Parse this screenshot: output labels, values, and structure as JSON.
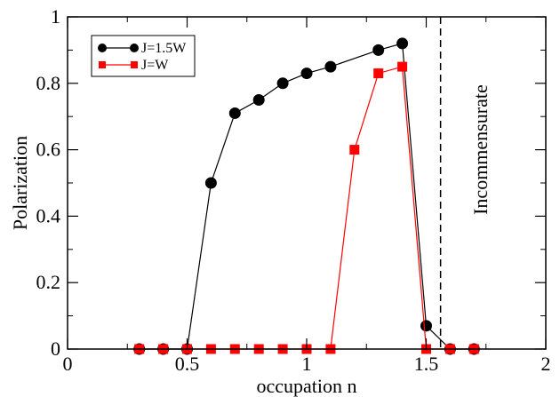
{
  "chart_data": {
    "type": "line",
    "xlabel": "occupation n",
    "ylabel": "Polarization",
    "xlim": [
      0,
      2
    ],
    "ylim": [
      0,
      1
    ],
    "x_ticks": [
      0,
      0.5,
      1,
      1.5,
      2
    ],
    "x_tick_labels": [
      "0",
      "0.5",
      "1",
      "1.5",
      "2"
    ],
    "y_ticks": [
      0,
      0.2,
      0.4,
      0.6,
      0.8,
      1
    ],
    "y_tick_labels": [
      "0",
      "0.2",
      "0.4",
      "0.6",
      "0.8",
      "1"
    ],
    "grid": false,
    "legend_position": "top-left",
    "series": [
      {
        "name": "J=1.5W",
        "color": "#000000",
        "marker": "circle",
        "x": [
          0.3,
          0.4,
          0.5,
          0.6,
          0.7,
          0.8,
          0.9,
          1.0,
          1.1,
          1.3,
          1.4,
          1.5,
          1.6,
          1.7
        ],
        "y": [
          0,
          0,
          0,
          0.5,
          0.71,
          0.75,
          0.8,
          0.83,
          0.85,
          0.9,
          0.92,
          0.07,
          0,
          0
        ]
      },
      {
        "name": "J=W",
        "color": "#ff0000",
        "marker": "square",
        "x": [
          0.3,
          0.4,
          0.5,
          0.6,
          0.7,
          0.8,
          0.9,
          1.0,
          1.1,
          1.2,
          1.3,
          1.4,
          1.5,
          1.6,
          1.7
        ],
        "y": [
          0,
          0,
          0,
          0,
          0,
          0,
          0,
          0,
          0,
          0.6,
          0.83,
          0.85,
          0,
          0,
          0
        ]
      }
    ],
    "reference_line": {
      "type": "vertical-dashed",
      "x": 1.56,
      "color": "#000000"
    },
    "annotations": [
      {
        "text": "Incommensurate",
        "orientation": "vertical"
      }
    ]
  }
}
